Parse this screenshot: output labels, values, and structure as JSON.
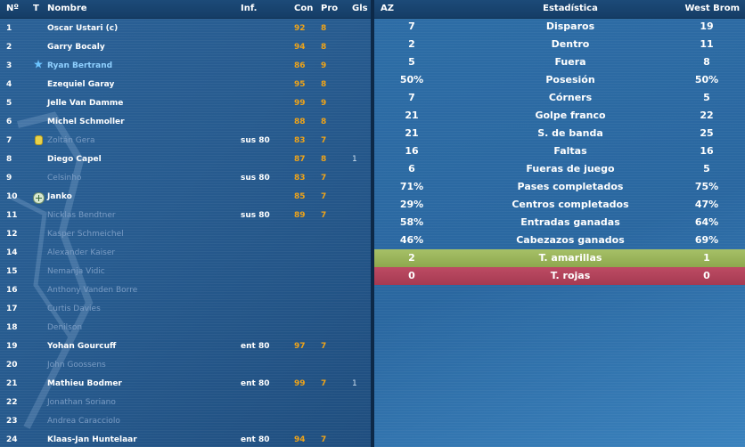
{
  "squad": {
    "headers": {
      "num": "Nº",
      "t": "T",
      "name": "Nombre",
      "inf": "Inf.",
      "con": "Con",
      "pro": "Pro",
      "gls": "Gls"
    },
    "rows": [
      {
        "num": "1",
        "name": "Oscar Ustari (c)",
        "inf": "",
        "con": "92",
        "pro": "8",
        "gls": "",
        "icon": "",
        "state": "active"
      },
      {
        "num": "2",
        "name": "Garry Bocaly",
        "inf": "",
        "con": "94",
        "pro": "8",
        "gls": "",
        "icon": "",
        "state": "active"
      },
      {
        "num": "3",
        "name": "Ryan Bertrand",
        "inf": "",
        "con": "86",
        "pro": "9",
        "gls": "",
        "icon": "star",
        "state": "highlight"
      },
      {
        "num": "4",
        "name": "Ezequiel Garay",
        "inf": "",
        "con": "95",
        "pro": "8",
        "gls": "",
        "icon": "",
        "state": "active"
      },
      {
        "num": "5",
        "name": "Jelle Van Damme",
        "inf": "",
        "con": "99",
        "pro": "9",
        "gls": "",
        "icon": "",
        "state": "active"
      },
      {
        "num": "6",
        "name": "Michel Schmoller",
        "inf": "",
        "con": "88",
        "pro": "8",
        "gls": "",
        "icon": "",
        "state": "active"
      },
      {
        "num": "7",
        "name": "Zoltán Gera",
        "inf": "sus 80",
        "con": "83",
        "pro": "7",
        "gls": "",
        "icon": "card",
        "state": "inactive"
      },
      {
        "num": "8",
        "name": "Diego Capel",
        "inf": "",
        "con": "87",
        "pro": "8",
        "gls": "1",
        "icon": "",
        "state": "active"
      },
      {
        "num": "9",
        "name": "Celsinho",
        "inf": "sus 80",
        "con": "83",
        "pro": "7",
        "gls": "",
        "icon": "",
        "state": "inactive"
      },
      {
        "num": "10",
        "name": "Janko",
        "inf": "",
        "con": "85",
        "pro": "7",
        "gls": "",
        "icon": "plus",
        "state": "active"
      },
      {
        "num": "11",
        "name": "Nicklas Bendtner",
        "inf": "sus 80",
        "con": "89",
        "pro": "7",
        "gls": "",
        "icon": "",
        "state": "inactive"
      },
      {
        "num": "12",
        "name": "Kasper Schmeichel",
        "inf": "",
        "con": "",
        "pro": "",
        "gls": "",
        "icon": "",
        "state": "inactive"
      },
      {
        "num": "14",
        "name": "Alexander Kaiser",
        "inf": "",
        "con": "",
        "pro": "",
        "gls": "",
        "icon": "",
        "state": "inactive"
      },
      {
        "num": "15",
        "name": "Nemanja Vidic",
        "inf": "",
        "con": "",
        "pro": "",
        "gls": "",
        "icon": "",
        "state": "inactive"
      },
      {
        "num": "16",
        "name": "Anthony Vanden Borre",
        "inf": "",
        "con": "",
        "pro": "",
        "gls": "",
        "icon": "",
        "state": "inactive"
      },
      {
        "num": "17",
        "name": "Curtis Davies",
        "inf": "",
        "con": "",
        "pro": "",
        "gls": "",
        "icon": "",
        "state": "inactive"
      },
      {
        "num": "18",
        "name": "Denilson",
        "inf": "",
        "con": "",
        "pro": "",
        "gls": "",
        "icon": "",
        "state": "inactive"
      },
      {
        "num": "19",
        "name": "Yohan Gourcuff",
        "inf": "ent 80",
        "con": "97",
        "pro": "7",
        "gls": "",
        "icon": "",
        "state": "active"
      },
      {
        "num": "20",
        "name": "John Goossens",
        "inf": "",
        "con": "",
        "pro": "",
        "gls": "",
        "icon": "",
        "state": "inactive"
      },
      {
        "num": "21",
        "name": "Mathieu Bodmer",
        "inf": "ent 80",
        "con": "99",
        "pro": "7",
        "gls": "1",
        "icon": "",
        "state": "active"
      },
      {
        "num": "22",
        "name": "Jonathan Soriano",
        "inf": "",
        "con": "",
        "pro": "",
        "gls": "",
        "icon": "",
        "state": "inactive"
      },
      {
        "num": "23",
        "name": "Andrea Caracciolo",
        "inf": "",
        "con": "",
        "pro": "",
        "gls": "",
        "icon": "",
        "state": "inactive"
      },
      {
        "num": "24",
        "name": "Klaas-Jan Huntelaar",
        "inf": "ent 80",
        "con": "94",
        "pro": "7",
        "gls": "",
        "icon": "",
        "state": "active"
      }
    ]
  },
  "stats": {
    "headers": {
      "home": "AZ",
      "label": "Estadística",
      "away": "West Brom"
    },
    "rows": [
      {
        "home": "7",
        "label": "Disparos",
        "away": "19",
        "style": ""
      },
      {
        "home": "2",
        "label": "Dentro",
        "away": "11",
        "style": ""
      },
      {
        "home": "5",
        "label": "Fuera",
        "away": "8",
        "style": ""
      },
      {
        "home": "50%",
        "label": "Posesión",
        "away": "50%",
        "style": ""
      },
      {
        "home": "7",
        "label": "Córners",
        "away": "5",
        "style": ""
      },
      {
        "home": "21",
        "label": "Golpe franco",
        "away": "22",
        "style": ""
      },
      {
        "home": "21",
        "label": "S. de banda",
        "away": "25",
        "style": ""
      },
      {
        "home": "16",
        "label": "Faltas",
        "away": "16",
        "style": ""
      },
      {
        "home": "6",
        "label": "Fueras de juego",
        "away": "5",
        "style": ""
      },
      {
        "home": "71%",
        "label": "Pases completados",
        "away": "75%",
        "style": ""
      },
      {
        "home": "29%",
        "label": "Centros completados",
        "away": "47%",
        "style": ""
      },
      {
        "home": "58%",
        "label": "Entradas ganadas",
        "away": "64%",
        "style": ""
      },
      {
        "home": "46%",
        "label": "Cabezazos ganados",
        "away": "69%",
        "style": ""
      },
      {
        "home": "2",
        "label": "T. amarillas",
        "away": "1",
        "style": "yellow"
      },
      {
        "home": "0",
        "label": "T. rojas",
        "away": "0",
        "style": "red"
      }
    ]
  }
}
